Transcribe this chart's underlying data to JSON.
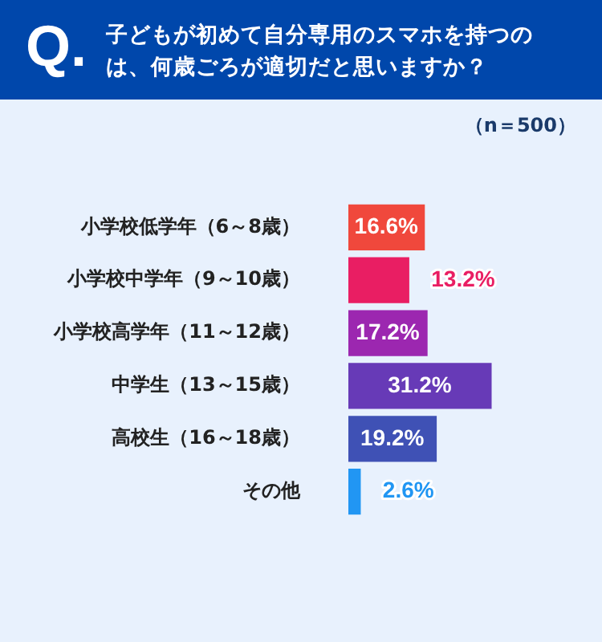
{
  "chart_data": {
    "type": "bar",
    "orientation": "horizontal",
    "title": "子どもが初めて自分専用のスマホを持つのは、何歳ごろが適切だと思いますか？",
    "annotations": [
      "Q.",
      "（n＝500）"
    ],
    "categories": [
      "小学校低学年（6～8歳）",
      "小学校中学年（9～10歳）",
      "小学校高学年（11～12歳）",
      "中学生（13～15歳）",
      "高校生（16～18歳）",
      "その他"
    ],
    "values": [
      16.6,
      13.2,
      17.2,
      31.2,
      19.2,
      2.6
    ],
    "colors": [
      "#f0483c",
      "#e91e63",
      "#9c27b0",
      "#673ab7",
      "#3f51b5",
      "#2196f3"
    ],
    "value_labels": [
      "16.6%",
      "13.2%",
      "17.2%",
      "31.2%",
      "19.2%",
      "2.6%"
    ],
    "legend": false
  }
}
